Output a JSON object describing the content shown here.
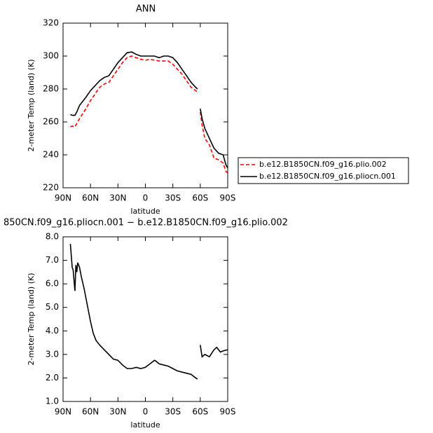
{
  "chart_data": [
    {
      "type": "line",
      "title": "ANN",
      "xlabel": "latitude",
      "ylabel": "2-meter Temp (land) (K)",
      "xlim": [
        90,
        -90
      ],
      "xticks": [
        {
          "value": 90,
          "label": "90N"
        },
        {
          "value": 60,
          "label": "60N"
        },
        {
          "value": 30,
          "label": "30N"
        },
        0,
        {
          "value": -30,
          "label": "30S"
        },
        {
          "value": -60,
          "label": "60S"
        },
        {
          "value": -90,
          "label": "90S"
        }
      ],
      "ylim": [
        220,
        320
      ],
      "yticks": [
        220,
        240,
        260,
        280,
        300,
        320
      ],
      "x": [
        82,
        80,
        77,
        75,
        72,
        65,
        60,
        55,
        50,
        45,
        40,
        35,
        30,
        25,
        20,
        15,
        10,
        5,
        0,
        -5,
        -10,
        -15,
        -20,
        -25,
        -30,
        -35,
        -40,
        -45,
        -50,
        -55,
        -57,
        -58,
        -60,
        -62,
        -65,
        -70,
        -75,
        -80,
        -85,
        -88,
        -90
      ],
      "series": [
        {
          "name": "b.e12.B1850CN.f09_g16.plio.002",
          "color": "#ff0000",
          "linestyle": "dashed",
          "values": [
            257,
            257.5,
            257,
            259,
            262,
            268,
            273,
            277,
            281,
            283,
            284,
            288,
            292,
            296,
            299,
            300,
            299,
            298,
            297.5,
            298,
            297.5,
            297,
            297,
            297,
            295,
            292,
            289,
            285,
            281,
            279,
            278,
            null,
            266,
            258,
            250,
            246,
            238,
            237,
            235,
            230,
            229
          ]
        },
        {
          "name": "b.e12.B1850CN.f09_g16.pliocn.001",
          "color": "#000000",
          "linestyle": "solid",
          "values": [
            264.5,
            264,
            264,
            266,
            270,
            275,
            279,
            282,
            285,
            287,
            288,
            292,
            296,
            299,
            302,
            302.5,
            301,
            300,
            300,
            300,
            300,
            299,
            300,
            300,
            299,
            296,
            292,
            288,
            284,
            281,
            280,
            null,
            268,
            262,
            256,
            250,
            244,
            241,
            240,
            234,
            232
          ]
        }
      ]
    },
    {
      "type": "line",
      "title": "850CN.f09_g16.pliocn.001 − b.e12.B1850CN.f09_g16.plio.002",
      "xlabel": "latitude",
      "ylabel": "2-meter Temp (land) (K)",
      "xlim": [
        90,
        -90
      ],
      "xticks": [
        {
          "value": 90,
          "label": "90N"
        },
        {
          "value": 60,
          "label": "60N"
        },
        {
          "value": 30,
          "label": "30N"
        },
        0,
        {
          "value": -30,
          "label": "30S"
        },
        {
          "value": -60,
          "label": "60S"
        },
        {
          "value": -90,
          "label": "90S"
        }
      ],
      "ylim": [
        1,
        8
      ],
      "yticks": [
        {
          "value": 1,
          "label": "1.0"
        },
        {
          "value": 2,
          "label": "2.0"
        },
        {
          "value": 3,
          "label": "3.0"
        },
        {
          "value": 4,
          "label": "4.0"
        },
        {
          "value": 5,
          "label": "5.0"
        },
        {
          "value": 6,
          "label": "6.0"
        },
        {
          "value": 7,
          "label": "7.0"
        },
        {
          "value": 8,
          "label": "8.0"
        }
      ],
      "x": [
        82,
        80,
        79,
        77,
        76,
        75,
        74,
        72,
        70,
        67,
        64,
        60,
        57,
        54,
        50,
        45,
        40,
        35,
        30,
        25,
        20,
        15,
        10,
        5,
        0,
        -5,
        -10,
        -12,
        -15,
        -20,
        -25,
        -30,
        -35,
        -40,
        -45,
        -50,
        -55,
        -57,
        -58,
        -60,
        -62,
        -65,
        -70,
        -75,
        -78,
        -82,
        -85,
        -90
      ],
      "series": [
        {
          "color": "#000000",
          "linestyle": "solid",
          "values": [
            7.7,
            6.7,
            6.6,
            5.7,
            6.8,
            6.5,
            6.9,
            6.7,
            6.3,
            5.8,
            5.2,
            4.4,
            3.9,
            3.6,
            3.4,
            3.2,
            3.0,
            2.8,
            2.75,
            2.55,
            2.4,
            2.4,
            2.45,
            2.4,
            2.45,
            2.6,
            2.75,
            2.7,
            2.6,
            2.55,
            2.5,
            2.4,
            2.3,
            2.25,
            2.2,
            2.15,
            2.0,
            1.95,
            null,
            3.4,
            2.9,
            3.0,
            2.9,
            3.2,
            3.3,
            3.1,
            3.15,
            3.2
          ]
        }
      ]
    }
  ]
}
